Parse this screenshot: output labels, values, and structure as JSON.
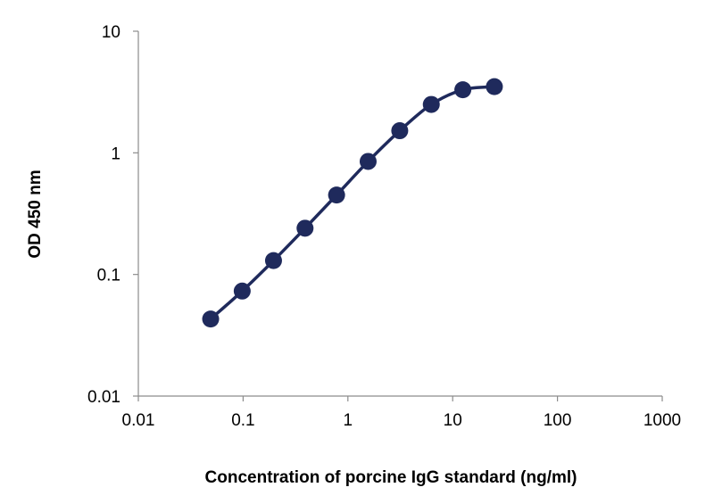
{
  "chart_data": {
    "type": "line",
    "title": "",
    "xlabel": "Concentration of porcine IgG standard (ng/ml)",
    "ylabel": "OD 450 nm",
    "x_scale": "log",
    "y_scale": "log",
    "xlim": [
      0.01,
      1000
    ],
    "ylim": [
      0.01,
      10
    ],
    "x_ticks": [
      0.01,
      0.1,
      1,
      10,
      100,
      1000
    ],
    "x_tick_labels": [
      "0.01",
      "0.1",
      "1",
      "10",
      "100",
      "1000"
    ],
    "y_ticks": [
      0.01,
      0.1,
      1,
      10
    ],
    "y_tick_labels": [
      "0.01",
      "0.1",
      "1",
      "10"
    ],
    "grid": false,
    "legend": "none",
    "series": [
      {
        "color": "#1f2a5c",
        "markers": true,
        "x": [
          0.049,
          0.098,
          0.195,
          0.39,
          0.78,
          1.56,
          3.125,
          6.25,
          12.5,
          25
        ],
        "y": [
          0.043,
          0.073,
          0.13,
          0.24,
          0.45,
          0.85,
          1.52,
          2.5,
          3.3,
          3.5
        ]
      }
    ]
  }
}
